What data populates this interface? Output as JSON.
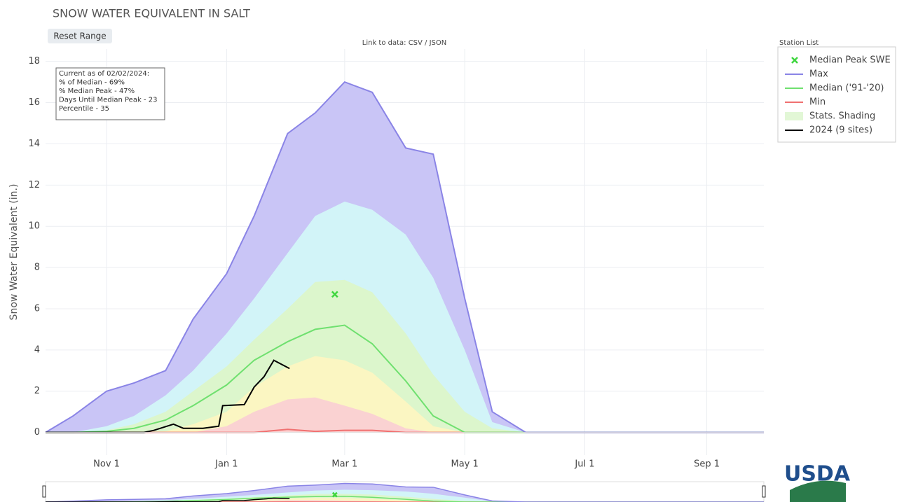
{
  "title": "SNOW WATER EQUIVALENT IN SALT",
  "reset_button": "Reset Range",
  "data_link": "Link to data: CSV / JSON",
  "logo": "USDA",
  "chart_data": {
    "type": "area",
    "y_label": "Snow Water Equivalent (in.)",
    "x": [
      "Oct 1",
      "Oct 15",
      "Nov 1",
      "Nov 15",
      "Dec 1",
      "Dec 15",
      "Jan 1",
      "Jan 15",
      "Feb 1",
      "Feb 15",
      "Mar 1",
      "Mar 15",
      "Apr 1",
      "Apr 15",
      "May 1",
      "May 15",
      "Jun 1",
      "Jun 15",
      "Jul 1",
      "Aug 1",
      "Sep 1",
      "Sep 30"
    ],
    "xlim": [
      "Oct 1",
      "Sep 30"
    ],
    "xticks": [
      "Nov 1",
      "Jan 1",
      "Mar 1",
      "May 1",
      "Jul 1",
      "Sep 1"
    ],
    "ylim": [
      -1.1,
      18.6
    ],
    "yticks": [
      0,
      2,
      4,
      6,
      8,
      10,
      12,
      14,
      16,
      18
    ],
    "grid": true,
    "legend_title": "Station List",
    "legend": "top-right",
    "peak": {
      "name": "Median Peak SWE",
      "color": "#3ed63e",
      "x": "Feb 25",
      "value": 6.7
    },
    "series": [
      {
        "name": "Max",
        "color": "#8a84e6",
        "fill": "#c9c5f6",
        "values": [
          0,
          0.8,
          2.0,
          2.4,
          3.0,
          5.5,
          7.7,
          10.5,
          14.5,
          15.5,
          17.0,
          16.5,
          13.8,
          13.5,
          6.5,
          1.0,
          0,
          0,
          0,
          0,
          0,
          0
        ]
      },
      {
        "name": "Median ('91-'20)",
        "color": "#6fe06f",
        "values": [
          0,
          0,
          0.05,
          0.2,
          0.6,
          1.3,
          2.3,
          3.5,
          4.4,
          5.0,
          5.2,
          4.3,
          2.5,
          0.8,
          0,
          0,
          0,
          0,
          0,
          0,
          0,
          0
        ]
      },
      {
        "name": "Min",
        "color": "#f07070",
        "values": [
          0,
          0,
          0,
          0,
          0,
          0,
          0,
          0,
          0.15,
          0.05,
          0.1,
          0.1,
          0,
          0,
          0,
          0,
          0,
          0,
          0,
          0,
          0,
          0
        ]
      }
    ],
    "shading": {
      "name": "Stats. Shading",
      "color": "#e2f7d6",
      "bands": [
        {
          "fill": "#d2f4f8",
          "values": [
            0,
            0,
            0.3,
            0.8,
            1.8,
            3.0,
            4.8,
            6.5,
            8.7,
            10.5,
            11.2,
            10.8,
            9.6,
            7.5,
            4.0,
            0.5,
            0,
            0,
            0,
            0,
            0,
            0
          ]
        },
        {
          "fill": "#dcf6cc",
          "values": [
            0,
            0,
            0.1,
            0.4,
            1.0,
            2.0,
            3.2,
            4.5,
            6.0,
            7.3,
            7.4,
            6.8,
            4.8,
            2.8,
            1.0,
            0.2,
            0,
            0,
            0,
            0,
            0,
            0
          ]
        },
        {
          "fill": "#fbf6c2",
          "values": [
            0,
            0,
            0,
            0,
            0.05,
            0.4,
            1.0,
            2.2,
            3.2,
            3.7,
            3.5,
            2.9,
            1.5,
            0.3,
            0,
            0,
            0,
            0,
            0,
            0,
            0,
            0
          ]
        },
        {
          "fill": "#fad2d2",
          "values": [
            0,
            0,
            0,
            0,
            0,
            0,
            0.3,
            1.0,
            1.6,
            1.7,
            1.3,
            0.9,
            0.2,
            0,
            0,
            0,
            0,
            0,
            0,
            0,
            0,
            0
          ]
        }
      ]
    },
    "current": {
      "name": "2024 (9 sites)",
      "color": "#000000",
      "x": [
        "Oct 1",
        "Nov 20",
        "Nov 25",
        "Dec 5",
        "Dec 10",
        "Dec 20",
        "Dec 28",
        "Dec 30",
        "Jan 10",
        "Jan 15",
        "Jan 20",
        "Jan 25",
        "Feb 2"
      ],
      "values": [
        0,
        0,
        0.1,
        0.4,
        0.2,
        0.2,
        0.3,
        1.3,
        1.35,
        2.2,
        2.7,
        3.5,
        3.1
      ]
    },
    "annotation": [
      "Current as of 02/02/2024:",
      "% of Median - 69%",
      "% Median Peak - 47%",
      "Days Until Median Peak - 23",
      "Percentile - 35"
    ]
  }
}
